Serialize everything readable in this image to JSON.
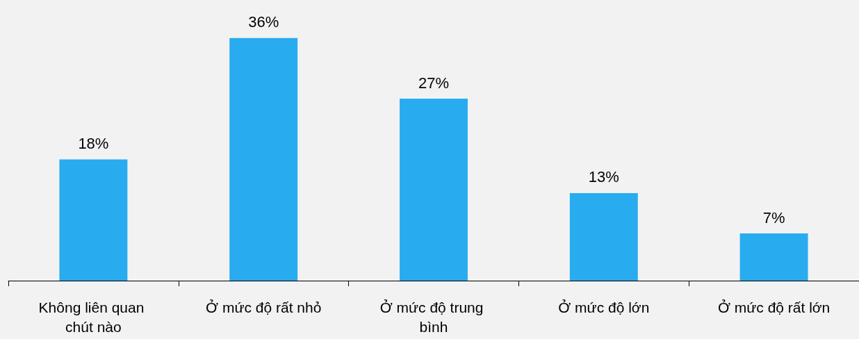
{
  "chart_data": {
    "type": "bar",
    "categories": [
      "Không liên quan chút nào",
      "Ở mức độ rất nhỏ",
      "Ở mức độ trung bình",
      "Ở mức độ lớn",
      "Ở mức độ rất lớn"
    ],
    "values": [
      18,
      36,
      27,
      13,
      7
    ],
    "value_labels": [
      "18%",
      "36%",
      "27%",
      "13%",
      "7%"
    ],
    "color": "#29abef"
  }
}
